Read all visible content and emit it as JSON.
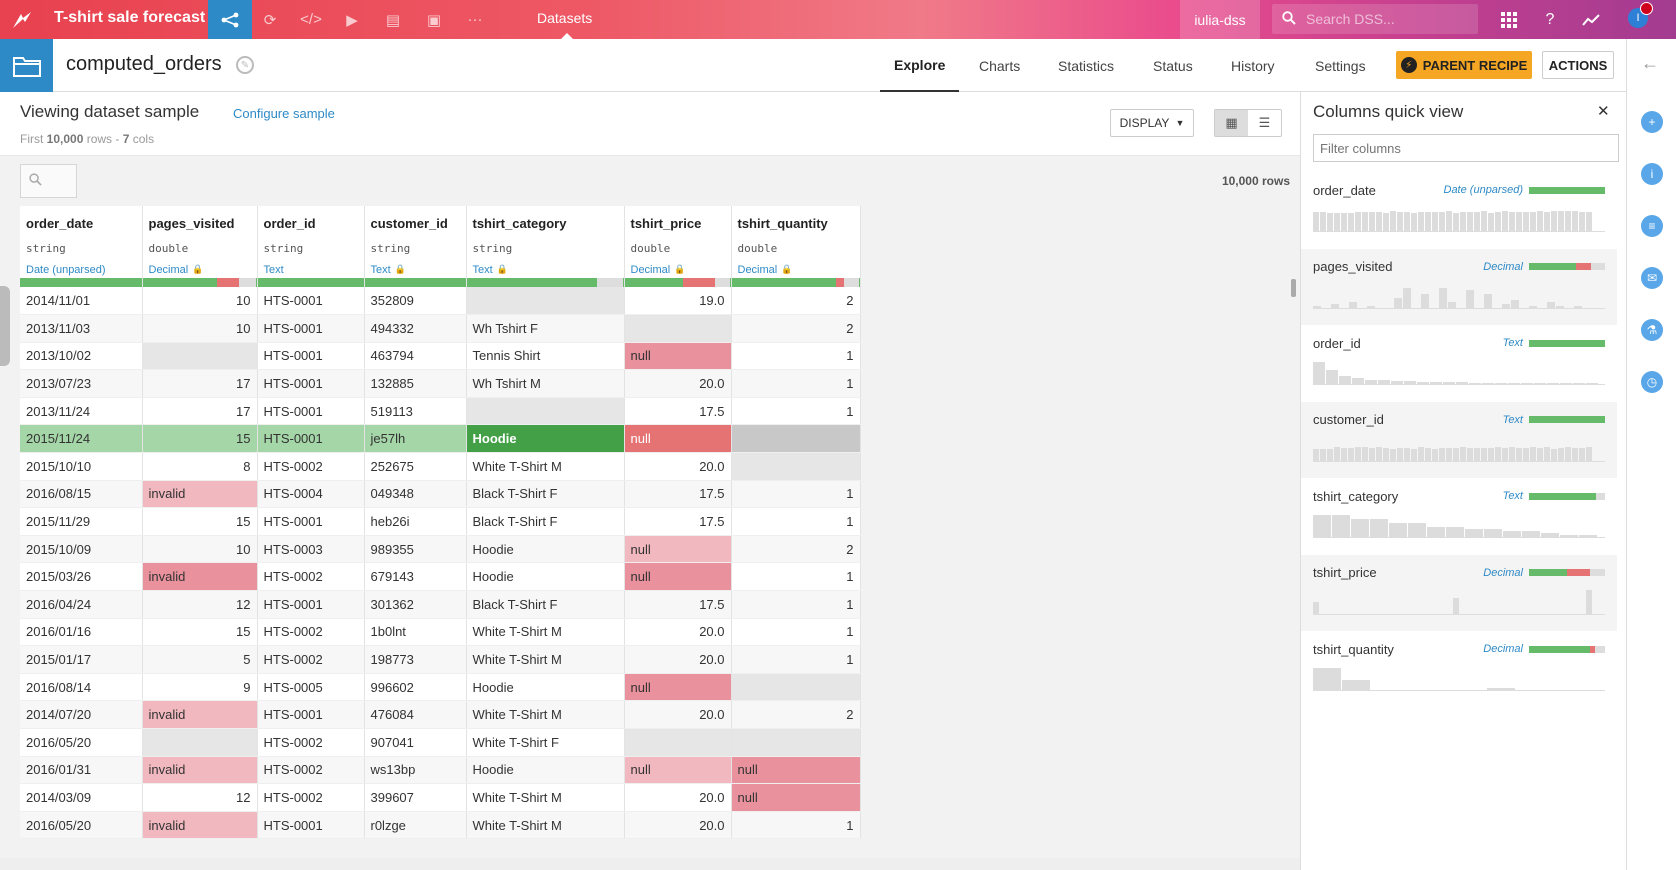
{
  "topbar": {
    "project_title": "T-shirt sale forecast",
    "section": "Datasets",
    "user": "iulia-dss",
    "search_placeholder": "Search DSS...",
    "avatar_letter": "I"
  },
  "dataset": {
    "name": "computed_orders",
    "tabs": [
      "Explore",
      "Charts",
      "Statistics",
      "Status",
      "History",
      "Settings"
    ],
    "parent_recipe": "PARENT RECIPE",
    "actions": "ACTIONS"
  },
  "sample": {
    "title": "Viewing dataset sample",
    "configure": "Configure sample",
    "sub_prefix": "First ",
    "rows": "10,000",
    "sub_mid": " rows - ",
    "cols": "7",
    "sub_suffix": " cols",
    "display": "DISPLAY",
    "row_count": "10,000 rows"
  },
  "columns": [
    {
      "name": "order_date",
      "type": "string",
      "meaning": "Date (unparsed)",
      "locked": false
    },
    {
      "name": "pages_visited",
      "type": "double",
      "meaning": "Decimal",
      "locked": true
    },
    {
      "name": "order_id",
      "type": "string",
      "meaning": "Text",
      "locked": false
    },
    {
      "name": "customer_id",
      "type": "string",
      "meaning": "Text",
      "locked": true
    },
    {
      "name": "tshirt_category",
      "type": "string",
      "meaning": "Text",
      "locked": true
    },
    {
      "name": "tshirt_price",
      "type": "double",
      "meaning": "Decimal",
      "locked": true
    },
    {
      "name": "tshirt_quantity",
      "type": "double",
      "meaning": "Decimal",
      "locked": true
    }
  ],
  "rows": [
    [
      "2014/11/01",
      "10",
      "HTS-0001",
      "352809",
      "",
      "19.0",
      "2"
    ],
    [
      "2013/11/03",
      "10",
      "HTS-0001",
      "494332",
      "Wh Tshirt F",
      "",
      "2"
    ],
    [
      "2013/10/02",
      "",
      "HTS-0001",
      "463794",
      "Tennis Shirt",
      "null",
      "1"
    ],
    [
      "2013/07/23",
      "17",
      "HTS-0001",
      "132885",
      "Wh Tshirt M",
      "20.0",
      "1"
    ],
    [
      "2013/11/24",
      "17",
      "HTS-0001",
      "519113",
      "",
      "17.5",
      "1"
    ],
    [
      "2015/11/24",
      "15",
      "HTS-0001",
      "je57lh",
      "Hoodie",
      "null",
      ""
    ],
    [
      "2015/10/10",
      "8",
      "HTS-0002",
      "252675",
      "White T-Shirt M",
      "20.0",
      ""
    ],
    [
      "2016/08/15",
      "invalid",
      "HTS-0004",
      "049348",
      "Black T-Shirt F",
      "17.5",
      "1"
    ],
    [
      "2015/11/29",
      "15",
      "HTS-0001",
      "heb26i",
      "Black T-Shirt F",
      "17.5",
      "1"
    ],
    [
      "2015/10/09",
      "10",
      "HTS-0003",
      "989355",
      "Hoodie",
      "null",
      "2"
    ],
    [
      "2015/03/26",
      "invalid",
      "HTS-0002",
      "679143",
      "Hoodie",
      "null",
      "1"
    ],
    [
      "2016/04/24",
      "12",
      "HTS-0001",
      "301362",
      "Black T-Shirt F",
      "17.5",
      "1"
    ],
    [
      "2016/01/16",
      "15",
      "HTS-0002",
      "1b0lnt",
      "White T-Shirt M",
      "20.0",
      "1"
    ],
    [
      "2015/01/17",
      "5",
      "HTS-0002",
      "198773",
      "White T-Shirt M",
      "20.0",
      "1"
    ],
    [
      "2016/08/14",
      "9",
      "HTS-0005",
      "996602",
      "Hoodie",
      "null",
      ""
    ],
    [
      "2014/07/20",
      "invalid",
      "HTS-0001",
      "476084",
      "White T-Shirt M",
      "20.0",
      "2"
    ],
    [
      "2016/05/20",
      "",
      "HTS-0002",
      "907041",
      "White T-Shirt F",
      "",
      ""
    ],
    [
      "2016/01/31",
      "invalid",
      "HTS-0002",
      "ws13bp",
      "Hoodie",
      "null",
      "null"
    ],
    [
      "2014/03/09",
      "12",
      "HTS-0002",
      "399607",
      "White T-Shirt M",
      "20.0",
      "null"
    ],
    [
      "2016/05/20",
      "invalid",
      "HTS-0001",
      "r0lzge",
      "White T-Shirt M",
      "20.0",
      "1"
    ]
  ],
  "selected_row": 5,
  "quick_view": {
    "title": "Columns quick view",
    "filter_placeholder": "Filter columns",
    "columns": [
      {
        "name": "order_date",
        "meaning": "Date (unparsed)",
        "ok": 100,
        "bad": 0
      },
      {
        "name": "pages_visited",
        "meaning": "Decimal",
        "ok": 62,
        "bad": 20
      },
      {
        "name": "order_id",
        "meaning": "Text",
        "ok": 100,
        "bad": 0
      },
      {
        "name": "customer_id",
        "meaning": "Text",
        "ok": 100,
        "bad": 0
      },
      {
        "name": "tshirt_category",
        "meaning": "Text",
        "ok": 88,
        "bad": 0
      },
      {
        "name": "tshirt_price",
        "meaning": "Decimal",
        "ok": 50,
        "bad": 30
      },
      {
        "name": "tshirt_quantity",
        "meaning": "Decimal",
        "ok": 80,
        "bad": 7
      }
    ]
  },
  "colors": {
    "nav_red": "#e8414f",
    "accent_blue": "#2e8ac6",
    "valid_green": "#66bb6a",
    "invalid_red": "#e57373",
    "recipe_orange": "#f5a623"
  }
}
